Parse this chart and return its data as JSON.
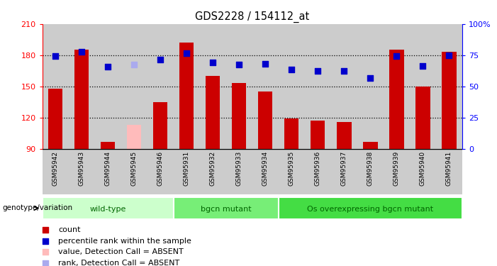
{
  "title": "GDS2228 / 154112_at",
  "samples": [
    "GSM95942",
    "GSM95943",
    "GSM95944",
    "GSM95945",
    "GSM95946",
    "GSM95931",
    "GSM95932",
    "GSM95933",
    "GSM95934",
    "GSM95935",
    "GSM95936",
    "GSM95937",
    "GSM95938",
    "GSM95939",
    "GSM95940",
    "GSM95941"
  ],
  "bar_values": [
    148,
    185,
    97,
    null,
    135,
    192,
    160,
    153,
    145,
    119,
    117,
    116,
    97,
    185,
    150,
    183
  ],
  "bar_absent_values": [
    null,
    null,
    null,
    113,
    null,
    null,
    null,
    null,
    null,
    null,
    null,
    null,
    null,
    null,
    null,
    null
  ],
  "bar_color_normal": "#cc0000",
  "bar_color_absent": "#ffbbbb",
  "percentile_values": [
    179,
    183,
    169,
    null,
    176,
    182,
    173,
    171,
    172,
    166,
    165,
    165,
    158,
    179,
    170,
    180
  ],
  "percentile_absent_values": [
    null,
    null,
    null,
    171,
    null,
    null,
    null,
    null,
    null,
    null,
    null,
    null,
    null,
    null,
    null,
    null
  ],
  "percentile_color_normal": "#0000cc",
  "percentile_color_absent": "#aaaaee",
  "ymin": 90,
  "ymax": 210,
  "yticks_left": [
    90,
    120,
    150,
    180,
    210
  ],
  "yticks_right_vals": [
    90,
    120,
    150,
    180,
    210
  ],
  "yticks_right_labels": [
    "0",
    "25",
    "50",
    "75",
    "100%"
  ],
  "group_labels": [
    "wild-type",
    "bgcn mutant",
    "Os overexpressing bgcn mutant"
  ],
  "group_ranges": [
    0,
    5,
    9,
    16
  ],
  "group_colors": [
    "#ccffcc",
    "#77ee77",
    "#44dd44"
  ],
  "group_text_color": "#006600",
  "xlabel_left": "genotype/variation",
  "legend_items": [
    {
      "label": "count",
      "color": "#cc0000"
    },
    {
      "label": "percentile rank within the sample",
      "color": "#0000cc"
    },
    {
      "label": "value, Detection Call = ABSENT",
      "color": "#ffbbbb"
    },
    {
      "label": "rank, Detection Call = ABSENT",
      "color": "#aaaaee"
    }
  ],
  "bar_width": 0.55,
  "dot_size": 40,
  "col_bg_color": "#cccccc",
  "plot_bg_color": "#ffffff",
  "grid_dotted_vals": [
    120,
    150,
    180
  ]
}
